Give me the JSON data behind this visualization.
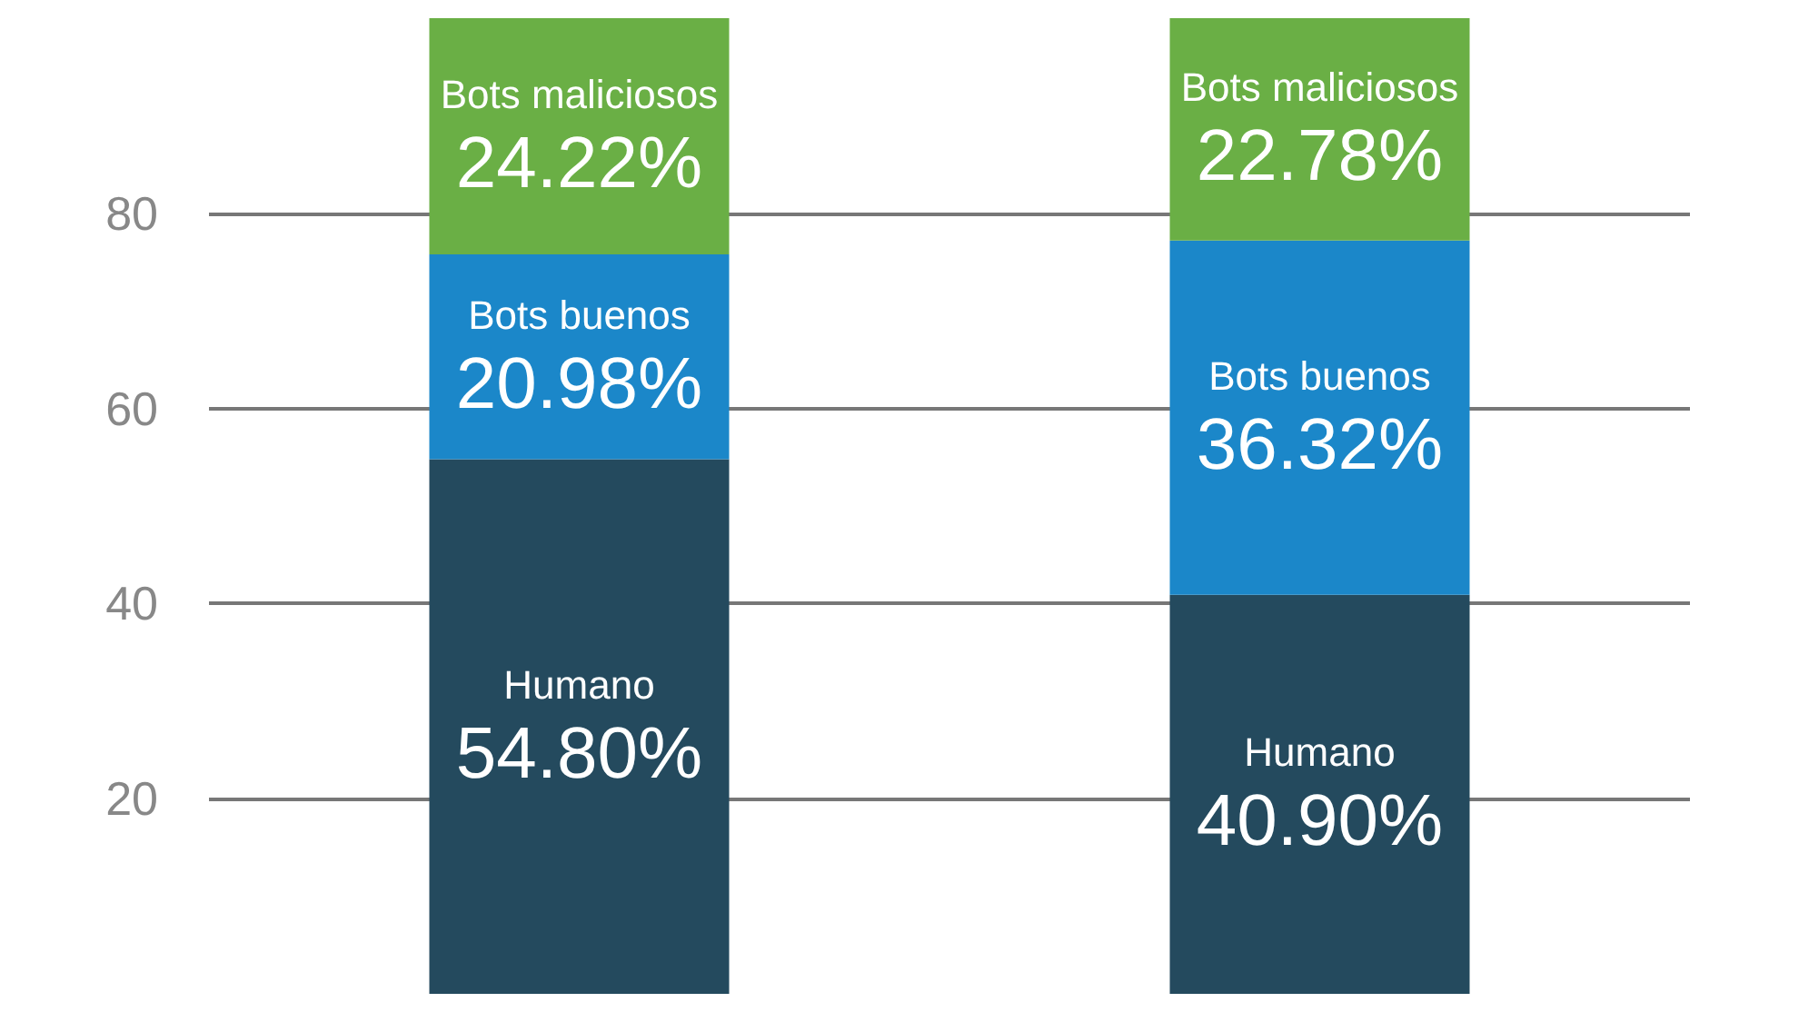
{
  "chart_data": {
    "type": "bar",
    "stacked": true,
    "categories": [
      null,
      null
    ],
    "series": [
      {
        "name": "Humano",
        "color": "#244a5e",
        "values": [
          54.8,
          40.9
        ],
        "value_labels": [
          "54.80%",
          "40.90%"
        ]
      },
      {
        "name": "Bots buenos",
        "color": "#1b87c9",
        "values": [
          20.98,
          36.32
        ],
        "value_labels": [
          "20.98%",
          "36.32%"
        ]
      },
      {
        "name": "Bots maliciosos",
        "color": "#6aaf45",
        "values": [
          24.22,
          22.78
        ],
        "value_labels": [
          "24.22%",
          "22.78%"
        ]
      }
    ],
    "ylim": [
      0,
      100
    ],
    "yticks": [
      20,
      40,
      60,
      80
    ],
    "grid": "y",
    "legend": false
  }
}
